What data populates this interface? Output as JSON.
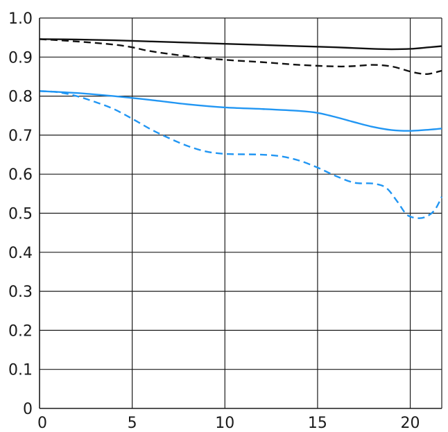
{
  "chart_data": {
    "type": "line",
    "title": "",
    "xlabel": "",
    "ylabel": "",
    "xlim": [
      0,
      21.7
    ],
    "ylim": [
      0,
      1.0
    ],
    "x_ticks": [
      0,
      5,
      10,
      15,
      20
    ],
    "x_tick_labels": [
      "0",
      "5",
      "10",
      "15",
      "20"
    ],
    "y_ticks": [
      0,
      0.1,
      0.2,
      0.3,
      0.4,
      0.5,
      0.6,
      0.7,
      0.8,
      0.9,
      1.0
    ],
    "y_tick_labels": [
      "0",
      "0.1",
      "0.2",
      "0.3",
      "0.4",
      "0.5",
      "0.6",
      "0.7",
      "0.8",
      "0.9",
      "1.0"
    ],
    "grid": true,
    "series": [
      {
        "color": "#111111",
        "dash": "solid",
        "x": [
          0,
          2,
          4,
          6,
          8,
          10,
          12,
          14,
          16,
          18,
          19,
          20,
          21,
          21.7
        ],
        "y": [
          0.946,
          0.945,
          0.943,
          0.94,
          0.937,
          0.934,
          0.931,
          0.928,
          0.925,
          0.921,
          0.92,
          0.921,
          0.925,
          0.928
        ]
      },
      {
        "color": "#111111",
        "dash": "dashed",
        "x": [
          0,
          2,
          4,
          5,
          6,
          8,
          10,
          12,
          14,
          16,
          17,
          18,
          19,
          20,
          20.5,
          21,
          21.7
        ],
        "y": [
          0.946,
          0.94,
          0.932,
          0.925,
          0.915,
          0.902,
          0.893,
          0.887,
          0.88,
          0.876,
          0.877,
          0.88,
          0.876,
          0.863,
          0.858,
          0.857,
          0.865
        ]
      },
      {
        "color": "#2196f3",
        "dash": "solid",
        "x": [
          0,
          2,
          4,
          6,
          8,
          10,
          12,
          14,
          15,
          16,
          17,
          18,
          19,
          20,
          21,
          21.7
        ],
        "y": [
          0.813,
          0.808,
          0.8,
          0.79,
          0.779,
          0.771,
          0.767,
          0.762,
          0.757,
          0.746,
          0.733,
          0.721,
          0.713,
          0.711,
          0.714,
          0.717
        ]
      },
      {
        "color": "#2196f3",
        "dash": "dashed",
        "x": [
          0,
          1,
          2,
          3,
          4,
          5,
          6,
          7,
          8,
          9,
          10,
          11,
          12,
          13,
          14,
          15,
          16,
          17,
          18,
          18.7,
          19.3,
          19.8,
          20.3,
          20.8,
          21.3,
          21.7
        ],
        "y": [
          0.813,
          0.81,
          0.8,
          0.785,
          0.767,
          0.742,
          0.715,
          0.692,
          0.672,
          0.658,
          0.652,
          0.651,
          0.65,
          0.646,
          0.635,
          0.617,
          0.595,
          0.578,
          0.576,
          0.565,
          0.53,
          0.497,
          0.488,
          0.49,
          0.507,
          0.542
        ]
      }
    ]
  }
}
